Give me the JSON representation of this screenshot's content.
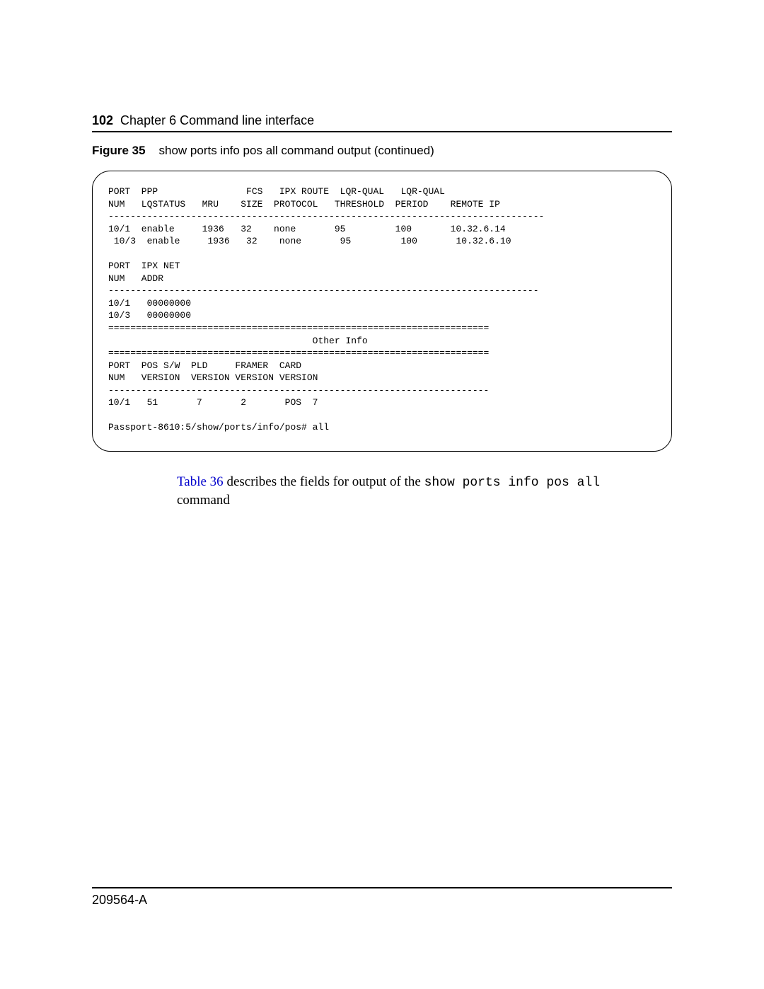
{
  "header": {
    "page_number": "102",
    "chapter": "Chapter 6  Command line interface"
  },
  "figure": {
    "label": "Figure 35",
    "caption": "show ports info pos all command output (continued)"
  },
  "terminal_output": "PORT  PPP                FCS   IPX ROUTE  LQR-QUAL   LQR-QUAL\nNUM   LQSTATUS   MRU    SIZE  PROTOCOL   THRESHOLD  PERIOD    REMOTE IP\n-------------------------------------------------------------------------------\n10/1  enable     1936   32    none       95         100       10.32.6.14\n 10/3  enable     1936   32    none       95         100       10.32.6.10\n\nPORT  IPX NET\nNUM   ADDR\n------------------------------------------------------------------------------\n10/1   00000000\n10/3   00000000\n=====================================================================\n                                     Other Info\n=====================================================================\nPORT  POS S/W  PLD     FRAMER  CARD\nNUM   VERSION  VERSION VERSION VERSION\n---------------------------------------------------------------------\n10/1   51       7       2       POS  7\n\nPassport-8610:5/show/ports/info/pos# all",
  "body": {
    "link_text": "Table 36",
    "mid_text": " describes the fields for output of the ",
    "mono_text": "show ports info pos all",
    "end_text": "command"
  },
  "footer": {
    "doc_id": "209564-A"
  }
}
